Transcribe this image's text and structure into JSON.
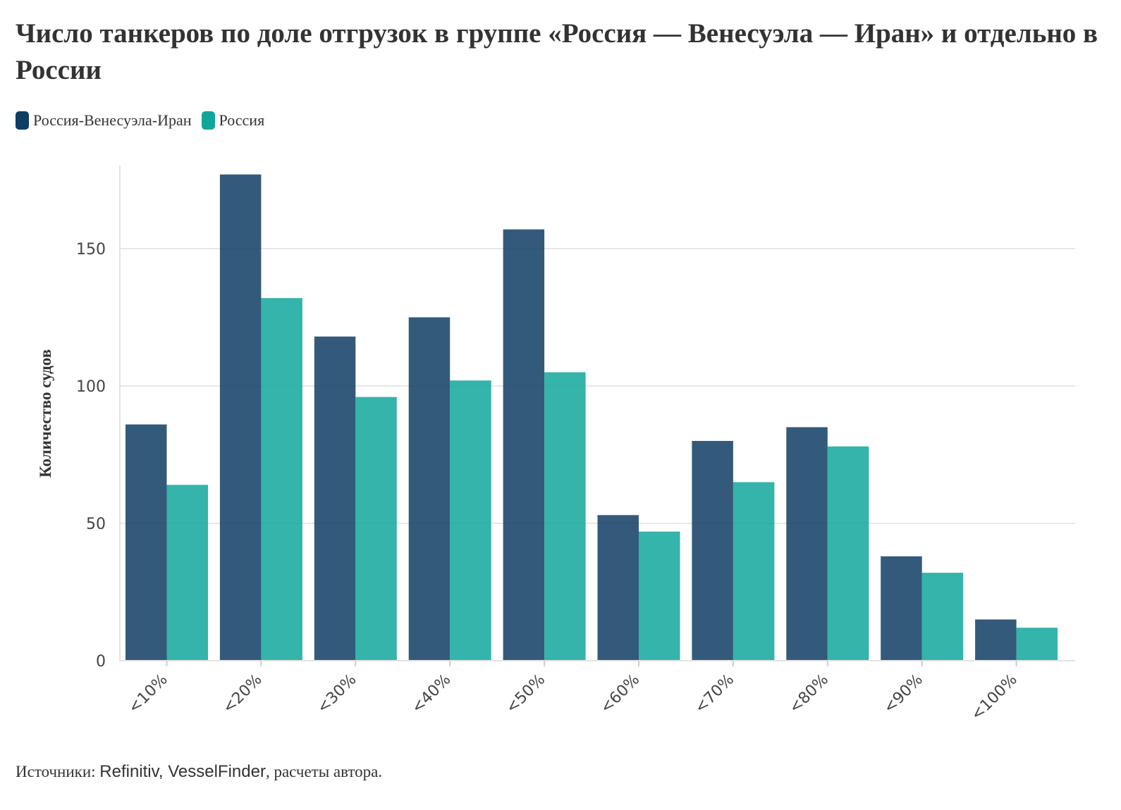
{
  "chart_data": {
    "type": "bar",
    "title": "Число танкеров по доле отгрузок в группе «Россия — Венесуэла — Иран» и отдельно в России",
    "xlabel": "",
    "ylabel": "Количество судов",
    "categories": [
      "<10%",
      "<20%",
      "<30%",
      "<40%",
      "<50%",
      "<60%",
      "<70%",
      "<80%",
      "<90%",
      "<100%"
    ],
    "series": [
      {
        "name": "Россия-Венесуэла-Иран",
        "color": "#0f3d63",
        "values": [
          86,
          177,
          118,
          125,
          157,
          53,
          80,
          85,
          38,
          15
        ]
      },
      {
        "name": "Россия",
        "color": "#10a79b",
        "values": [
          64,
          132,
          96,
          102,
          105,
          47,
          65,
          78,
          32,
          12
        ]
      }
    ],
    "ylim": [
      0,
      180
    ],
    "yticks": [
      "0",
      "50",
      "100",
      "150"
    ],
    "grid": true,
    "legend_position": "top-left"
  },
  "source": {
    "prefix": "Источники: ",
    "sources": "Refinitiv, VesselFinder",
    "suffix": ", расчеты автора."
  }
}
